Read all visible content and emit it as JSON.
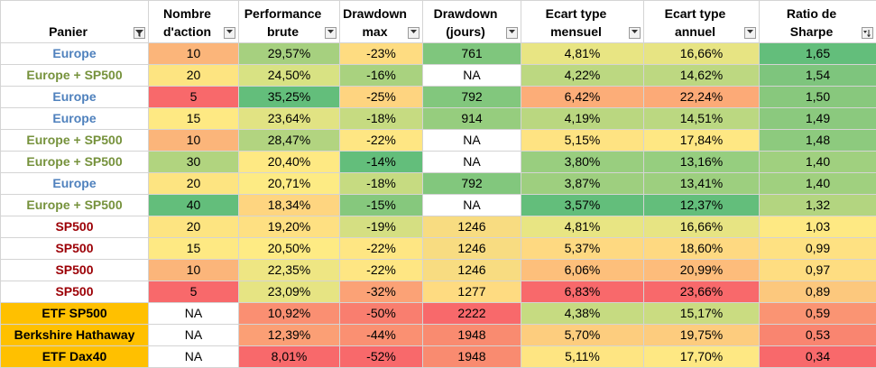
{
  "headers": [
    {
      "line1": "",
      "line2": "Panier",
      "filter": "filter-funnel-icon"
    },
    {
      "line1": "Nombre",
      "line2": "d'action",
      "filter": "dropdown-arrow-icon"
    },
    {
      "line1": "Performance",
      "line2": "brute",
      "filter": "dropdown-arrow-icon"
    },
    {
      "line1": "Drawdown",
      "line2": "max",
      "filter": "dropdown-arrow-icon"
    },
    {
      "line1": "Drawdown",
      "line2": "(jours)",
      "filter": "dropdown-arrow-icon"
    },
    {
      "line1": "Ecart type",
      "line2": "mensuel",
      "filter": "dropdown-arrow-icon"
    },
    {
      "line1": "Ecart type",
      "line2": "annuel",
      "filter": "dropdown-arrow-icon"
    },
    {
      "line1": "Ratio de",
      "line2": "Sharpe",
      "filter": "sort-descending-icon"
    }
  ],
  "rows": [
    {
      "panier": "Europe",
      "panier_color": "#4f81bd",
      "panier_bg": "#ffffff",
      "cells": [
        [
          "10",
          "#fbb57a"
        ],
        [
          "29,57%",
          "#a6d07f"
        ],
        [
          "-23%",
          "#fedc81"
        ],
        [
          "761",
          "#7fc67d"
        ],
        [
          "4,81%",
          "#e8e583"
        ],
        [
          "16,66%",
          "#e7e483"
        ],
        [
          "1,65",
          "#63be7b"
        ]
      ]
    },
    {
      "panier": "Europe + SP500",
      "panier_color": "#76923c",
      "panier_bg": "#ffffff",
      "cells": [
        [
          "20",
          "#fde481"
        ],
        [
          "24,50%",
          "#d8e283"
        ],
        [
          "-16%",
          "#a9d27f"
        ],
        [
          "NA",
          "#ffffff"
        ],
        [
          "4,22%",
          "#bcd881"
        ],
        [
          "14,62%",
          "#bdd881"
        ],
        [
          "1,54",
          "#7ec57d"
        ]
      ]
    },
    {
      "panier": "Europe",
      "panier_color": "#4f81bd",
      "panier_bg": "#ffffff",
      "cells": [
        [
          "5",
          "#f8696b"
        ],
        [
          "35,25%",
          "#63be7b"
        ],
        [
          "-25%",
          "#fed480"
        ],
        [
          "792",
          "#82c77d"
        ],
        [
          "6,42%",
          "#fcad78"
        ],
        [
          "22,24%",
          "#fcaa77"
        ],
        [
          "1,50",
          "#88c87d"
        ]
      ]
    },
    {
      "panier": "Europe",
      "panier_color": "#4f81bd",
      "panier_bg": "#ffffff",
      "cells": [
        [
          "15",
          "#fee983"
        ],
        [
          "23,64%",
          "#e1e383"
        ],
        [
          "-18%",
          "#c6db81"
        ],
        [
          "914",
          "#96cd7e"
        ],
        [
          "4,19%",
          "#bad780"
        ],
        [
          "14,51%",
          "#bbd881"
        ],
        [
          "1,49",
          "#8bc97e"
        ]
      ]
    },
    {
      "panier": "Europe + SP500",
      "panier_color": "#76923c",
      "panier_bg": "#ffffff",
      "cells": [
        [
          "10",
          "#fbb57a"
        ],
        [
          "28,47%",
          "#b2d480"
        ],
        [
          "-22%",
          "#fee683"
        ],
        [
          "NA",
          "#ffffff"
        ],
        [
          "5,15%",
          "#fee382"
        ],
        [
          "17,84%",
          "#fee783"
        ],
        [
          "1,48",
          "#8dca7e"
        ]
      ]
    },
    {
      "panier": "Europe + SP500",
      "panier_color": "#76923c",
      "panier_bg": "#ffffff",
      "cells": [
        [
          "30",
          "#b1d47f"
        ],
        [
          "20,40%",
          "#fee983"
        ],
        [
          "-14%",
          "#63be7b"
        ],
        [
          "NA",
          "#ffffff"
        ],
        [
          "3,80%",
          "#99ce7f"
        ],
        [
          "13,16%",
          "#96ce7f"
        ],
        [
          "1,40",
          "#a0d07f"
        ]
      ]
    },
    {
      "panier": "Europe",
      "panier_color": "#4f81bd",
      "panier_bg": "#ffffff",
      "cells": [
        [
          "20",
          "#fde481"
        ],
        [
          "20,71%",
          "#fdeb84"
        ],
        [
          "-18%",
          "#c6db81"
        ],
        [
          "792",
          "#82c77d"
        ],
        [
          "3,87%",
          "#9ecf7f"
        ],
        [
          "13,41%",
          "#9dcf7f"
        ],
        [
          "1,40",
          "#a0d07f"
        ]
      ]
    },
    {
      "panier": "Europe + SP500",
      "panier_color": "#76923c",
      "panier_bg": "#ffffff",
      "cells": [
        [
          "40",
          "#63be7b"
        ],
        [
          "18,34%",
          "#fed580"
        ],
        [
          "-15%",
          "#86c87d"
        ],
        [
          "NA",
          "#ffffff"
        ],
        [
          "3,57%",
          "#63be7b"
        ],
        [
          "12,37%",
          "#63be7b"
        ],
        [
          "1,32",
          "#b3d580"
        ]
      ]
    },
    {
      "panier": "SP500",
      "panier_color": "#9c0006",
      "panier_bg": "#ffffff",
      "cells": [
        [
          "20",
          "#fde481"
        ],
        [
          "19,20%",
          "#fee082"
        ],
        [
          "-19%",
          "#d5df82"
        ],
        [
          "1246",
          "#f8dc81"
        ],
        [
          "4,81%",
          "#e8e583"
        ],
        [
          "16,66%",
          "#e7e483"
        ],
        [
          "1,03",
          "#fee983"
        ]
      ]
    },
    {
      "panier": "SP500",
      "panier_color": "#9c0006",
      "panier_bg": "#ffffff",
      "cells": [
        [
          "15",
          "#fee983"
        ],
        [
          "20,50%",
          "#feeb84"
        ],
        [
          "-22%",
          "#fee683"
        ],
        [
          "1246",
          "#f8dc81"
        ],
        [
          "5,37%",
          "#fed981"
        ],
        [
          "18,60%",
          "#fed981"
        ],
        [
          "0,99",
          "#fee182"
        ]
      ]
    },
    {
      "panier": "SP500",
      "panier_color": "#9c0006",
      "panier_bg": "#ffffff",
      "cells": [
        [
          "10",
          "#fbb57a"
        ],
        [
          "22,35%",
          "#eee683"
        ],
        [
          "-22%",
          "#fee683"
        ],
        [
          "1246",
          "#f8dc81"
        ],
        [
          "6,06%",
          "#fdbf7b"
        ],
        [
          "20,99%",
          "#fdbc7b"
        ],
        [
          "0,97",
          "#fedd81"
        ]
      ]
    },
    {
      "panier": "SP500",
      "panier_color": "#9c0006",
      "panier_bg": "#ffffff",
      "cells": [
        [
          "5",
          "#f8696b"
        ],
        [
          "23,09%",
          "#e6e483"
        ],
        [
          "-32%",
          "#fba276"
        ],
        [
          "1277",
          "#fedb81"
        ],
        [
          "6,83%",
          "#f8696b"
        ],
        [
          "23,66%",
          "#f8696b"
        ],
        [
          "0,89",
          "#fcc87d"
        ]
      ]
    },
    {
      "panier": "ETF SP500",
      "panier_color": "#000000",
      "panier_bg": "#ffc000",
      "cells": [
        [
          "NA",
          "#ffffff"
        ],
        [
          "10,92%",
          "#fa8f72"
        ],
        [
          "-50%",
          "#f97e6f"
        ],
        [
          "2222",
          "#f8696b"
        ],
        [
          "4,38%",
          "#c6db81"
        ],
        [
          "15,17%",
          "#cadc81"
        ],
        [
          "0,59",
          "#fa9473"
        ]
      ]
    },
    {
      "panier": "Berkshire Hathaway",
      "panier_color": "#000000",
      "panier_bg": "#ffc000",
      "cells": [
        [
          "NA",
          "#ffffff"
        ],
        [
          "12,39%",
          "#fb9f75"
        ],
        [
          "-44%",
          "#fa9072"
        ],
        [
          "1948",
          "#f98b70"
        ],
        [
          "5,70%",
          "#fdcd7e"
        ],
        [
          "19,75%",
          "#fdcc7e"
        ],
        [
          "0,53",
          "#f98570"
        ]
      ]
    },
    {
      "panier": "ETF Dax40",
      "panier_color": "#000000",
      "panier_bg": "#ffc000",
      "cells": [
        [
          "NA",
          "#ffffff"
        ],
        [
          "8,01%",
          "#f8696b"
        ],
        [
          "-52%",
          "#f8696b"
        ],
        [
          "1948",
          "#f98b70"
        ],
        [
          "5,11%",
          "#fee582"
        ],
        [
          "17,70%",
          "#fee883"
        ],
        [
          "0,34",
          "#f8696b"
        ]
      ]
    }
  ]
}
